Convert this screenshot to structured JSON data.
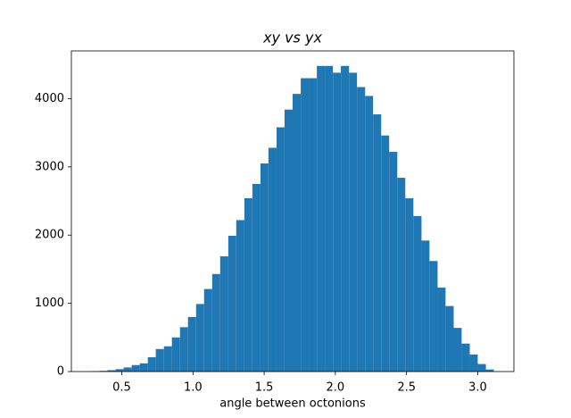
{
  "chart_data": {
    "type": "histogram",
    "title": "xy vs yx",
    "xlabel": "angle between octonions",
    "color": "#1f77b4",
    "bins": [
      0.287,
      0.344,
      0.4,
      0.457,
      0.513,
      0.57,
      0.626,
      0.683,
      0.739,
      0.796,
      0.852,
      0.909,
      0.965,
      1.022,
      1.078,
      1.135,
      1.191,
      1.248,
      1.304,
      1.361,
      1.417,
      1.474,
      1.53,
      1.587,
      1.643,
      1.7,
      1.757,
      1.813,
      1.87,
      1.926,
      1.983,
      2.039,
      2.096,
      2.152,
      2.209,
      2.265,
      2.322,
      2.378,
      2.435,
      2.491,
      2.548,
      2.605,
      2.661,
      2.718,
      2.774,
      2.831,
      2.887,
      2.944,
      3.0,
      3.057,
      3.113
    ],
    "values": [
      5,
      10,
      20,
      35,
      60,
      95,
      120,
      210,
      330,
      370,
      500,
      650,
      800,
      990,
      1210,
      1430,
      1690,
      1990,
      2220,
      2540,
      2750,
      3050,
      3280,
      3580,
      3840,
      4070,
      4300,
      4300,
      4480,
      4480,
      4380,
      4480,
      4380,
      4170,
      4040,
      3770,
      3460,
      3220,
      2840,
      2540,
      2280,
      1920,
      1620,
      1230,
      960,
      640,
      410,
      250,
      110,
      30
    ],
    "xlim": [
      0.146,
      3.254
    ],
    "ylim": [
      0,
      4700
    ],
    "xticks": [
      0.5,
      {
        "value": 1.0,
        "label": "1.0"
      },
      1.5,
      {
        "value": 2.0,
        "label": "2.0"
      },
      2.5,
      {
        "value": 3.0,
        "label": "3.0"
      }
    ],
    "yticks": [
      0,
      1000,
      2000,
      3000,
      4000
    ],
    "grid": false
  }
}
